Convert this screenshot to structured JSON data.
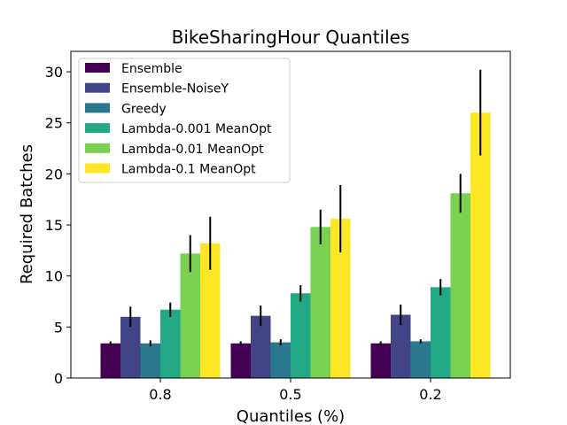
{
  "chart_data": {
    "type": "bar",
    "title": "BikeSharingHour Quantiles",
    "xlabel": "Quantiles (%)",
    "ylabel": "Required Batches",
    "categories": [
      "0.8",
      "0.5",
      "0.2"
    ],
    "ylim": [
      0,
      32
    ],
    "yticks": [
      0,
      5,
      10,
      15,
      20,
      25,
      30
    ],
    "grid": false,
    "legend_position": "top-left",
    "series": [
      {
        "name": "Ensemble",
        "color": "#440154",
        "values": [
          3.4,
          3.4,
          3.4
        ],
        "errors": [
          0.2,
          0.2,
          0.2
        ]
      },
      {
        "name": "Ensemble-NoiseY",
        "color": "#414487",
        "values": [
          6.0,
          6.1,
          6.2
        ],
        "errors": [
          1.0,
          1.0,
          1.0
        ]
      },
      {
        "name": "Greedy",
        "color": "#2a788e",
        "values": [
          3.4,
          3.5,
          3.6
        ],
        "errors": [
          0.3,
          0.3,
          0.2
        ]
      },
      {
        "name": "Lambda-0.001 MeanOpt",
        "color": "#22a884",
        "values": [
          6.7,
          8.3,
          8.9
        ],
        "errors": [
          0.7,
          0.8,
          0.8
        ]
      },
      {
        "name": "Lambda-0.01 MeanOpt",
        "color": "#7ad151",
        "values": [
          12.2,
          14.8,
          18.1
        ],
        "errors": [
          1.8,
          1.7,
          1.9
        ]
      },
      {
        "name": "Lambda-0.1 MeanOpt",
        "color": "#fde725",
        "values": [
          13.2,
          15.6,
          26.0
        ],
        "errors": [
          2.6,
          3.3,
          4.2
        ]
      }
    ]
  }
}
